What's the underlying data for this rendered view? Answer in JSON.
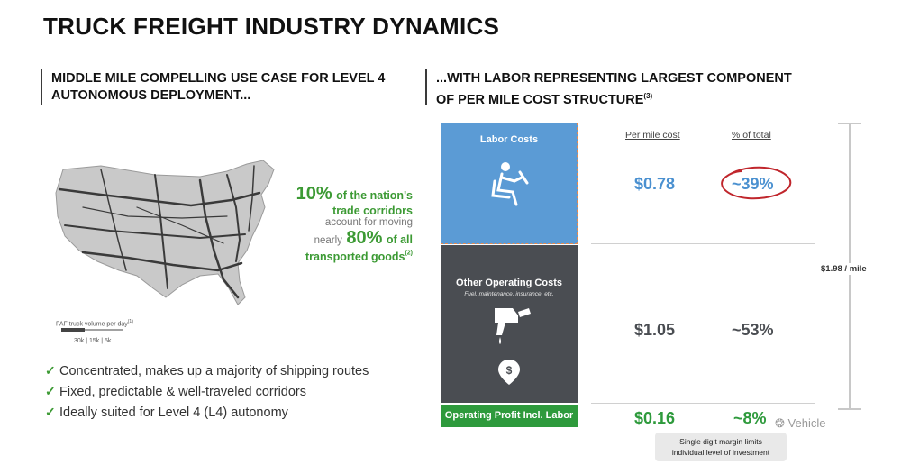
{
  "title": "TRUCK FREIGHT INDUSTRY DYNAMICS",
  "left": {
    "heading_line1": "MIDDLE MILE COMPELLING USE CASE FOR LEVEL 4",
    "heading_line2": "AUTONOMOUS DEPLOYMENT...",
    "map_legend_title": "FAF truck volume per day",
    "map_legend_note": "(1)",
    "map_legend_values": "30k  |  15k  |  5k",
    "stat": {
      "pct1": "10%",
      "pct1_text": "of the nation's",
      "line2": "trade corridors",
      "line3": "account for moving",
      "prefix4": "nearly",
      "pct2": "80%",
      "pct2_text": "of all",
      "line5": "transported goods",
      "note": "(2)"
    },
    "bullets": [
      "Concentrated, makes up a majority of shipping routes",
      "Fixed, predictable & well-traveled corridors",
      "Ideally suited for Level 4 (L4) autonomy"
    ]
  },
  "right": {
    "heading_line1": "...WITH LABOR REPRESENTING LARGEST COMPONENT",
    "heading_line2": "OF PER MILE COST STRUCTURE",
    "heading_note": "(3)",
    "col_cost": "Per mile cost",
    "col_pct": "% of total",
    "segments": {
      "labor": {
        "label": "Labor Costs",
        "cost": "$0.78",
        "pct": "~39%",
        "color": "#5b9bd5"
      },
      "other": {
        "label": "Other Operating Costs",
        "sub": "Fuel, maintenance, insurance, etc.",
        "cost": "$1.05",
        "pct": "~53%",
        "color": "#4a4d52"
      },
      "profit": {
        "label": "Operating Profit Incl. Labor",
        "cost": "$0.16",
        "pct": "~8%",
        "color": "#2e9a3c"
      }
    },
    "total": "$1.98 / mile",
    "note_line1": "Single digit margin limits",
    "note_line2": "individual level of investment"
  },
  "watermark": "Vehicle",
  "colors": {
    "green": "#3c9a34",
    "blue": "#5b9bd5",
    "dark": "#4a4d52",
    "red_circle": "#c0262c"
  }
}
